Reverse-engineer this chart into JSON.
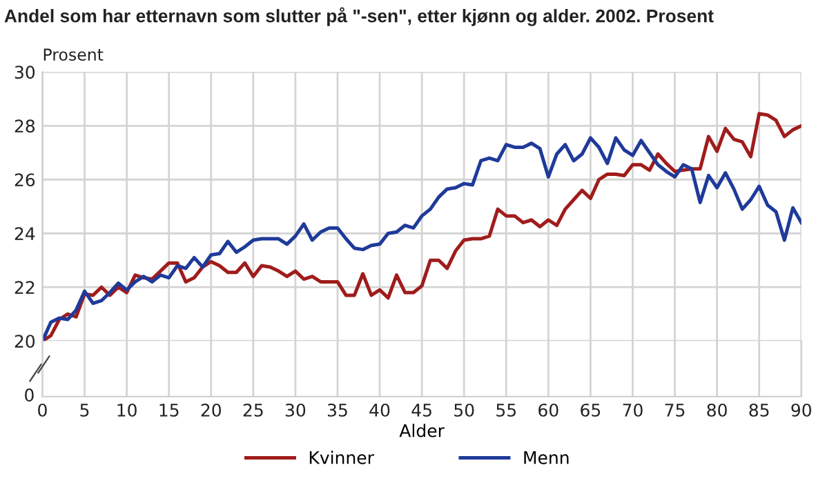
{
  "chart_data": {
    "type": "line",
    "title": "Andel som har etternavn som slutter på \"-sen\", etter kjønn og alder. 2002. Prosent",
    "ylabel": "Prosent",
    "xlabel": "Alder",
    "annotations": [
      "0"
    ],
    "x": [
      0,
      1,
      2,
      3,
      4,
      5,
      6,
      7,
      8,
      9,
      10,
      11,
      12,
      13,
      14,
      15,
      16,
      17,
      18,
      19,
      20,
      21,
      22,
      23,
      24,
      25,
      26,
      27,
      28,
      29,
      30,
      31,
      32,
      33,
      34,
      35,
      36,
      37,
      38,
      39,
      40,
      41,
      42,
      43,
      44,
      45,
      46,
      47,
      48,
      49,
      50,
      51,
      52,
      53,
      54,
      55,
      56,
      57,
      58,
      59,
      60,
      61,
      62,
      63,
      64,
      65,
      66,
      67,
      68,
      69,
      70,
      71,
      72,
      73,
      74,
      75,
      76,
      77,
      78,
      79,
      80,
      81,
      82,
      83,
      84,
      85,
      86,
      87,
      88,
      89,
      90
    ],
    "series": [
      {
        "name": "Kvinner",
        "color": "#a01c1c",
        "values": [
          20.0,
          20.2,
          20.8,
          21.0,
          20.9,
          21.75,
          21.7,
          22.0,
          21.7,
          22.0,
          21.8,
          22.45,
          22.35,
          22.3,
          22.6,
          22.9,
          22.9,
          22.2,
          22.35,
          22.75,
          22.95,
          22.8,
          22.55,
          22.55,
          22.9,
          22.4,
          22.8,
          22.75,
          22.6,
          22.4,
          22.6,
          22.3,
          22.4,
          22.2,
          22.2,
          22.2,
          21.7,
          21.7,
          22.5,
          21.7,
          21.9,
          21.6,
          22.45,
          21.8,
          21.8,
          22.05,
          23.0,
          23.0,
          22.7,
          23.35,
          23.75,
          23.8,
          23.8,
          23.9,
          24.9,
          24.65,
          24.65,
          24.4,
          24.5,
          24.25,
          24.5,
          24.3,
          24.9,
          25.25,
          25.6,
          25.3,
          26.0,
          26.2,
          26.2,
          26.15,
          26.55,
          26.55,
          26.35,
          26.95,
          26.6,
          26.3,
          26.35,
          26.4,
          26.4,
          27.6,
          27.05,
          27.9,
          27.5,
          27.4,
          26.85,
          28.45,
          28.4,
          28.2,
          27.6,
          27.85,
          28.0
        ]
      },
      {
        "name": "Menn",
        "color": "#1f3a99",
        "values": [
          20.0,
          20.7,
          20.85,
          20.8,
          21.15,
          21.85,
          21.4,
          21.5,
          21.8,
          22.15,
          21.9,
          22.2,
          22.4,
          22.2,
          22.45,
          22.35,
          22.8,
          22.7,
          23.1,
          22.75,
          23.2,
          23.25,
          23.7,
          23.3,
          23.5,
          23.75,
          23.8,
          23.8,
          23.8,
          23.6,
          23.9,
          24.35,
          23.75,
          24.05,
          24.2,
          24.2,
          23.8,
          23.45,
          23.4,
          23.55,
          23.6,
          24.0,
          24.05,
          24.3,
          24.2,
          24.65,
          24.9,
          25.35,
          25.65,
          25.7,
          25.85,
          25.8,
          26.7,
          26.8,
          26.7,
          27.3,
          27.2,
          27.2,
          27.35,
          27.15,
          26.1,
          26.95,
          27.3,
          26.7,
          26.95,
          27.55,
          27.2,
          26.6,
          27.55,
          27.1,
          26.9,
          27.45,
          27.0,
          26.55,
          26.3,
          26.1,
          26.55,
          26.4,
          25.15,
          26.15,
          25.7,
          26.25,
          25.65,
          24.9,
          25.25,
          25.75,
          25.05,
          24.8,
          23.75,
          24.95,
          24.4
        ]
      }
    ],
    "xlim": [
      0,
      90
    ],
    "xticks": [
      0,
      5,
      10,
      15,
      20,
      25,
      30,
      35,
      40,
      45,
      50,
      55,
      60,
      65,
      70,
      75,
      80,
      85,
      90
    ],
    "ylim": [
      20,
      30
    ],
    "yticks": [
      20,
      22,
      24,
      26,
      28,
      30
    ],
    "grid": true,
    "legend": "bottom",
    "marker": "none",
    "line_style": "solid"
  }
}
